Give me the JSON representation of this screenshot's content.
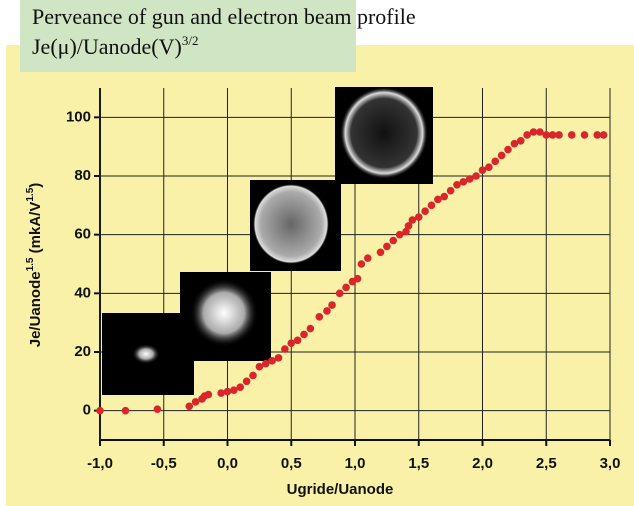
{
  "chart_data": {
    "type": "scatter",
    "title": "Perveance of gun and electron beam profile",
    "subtitle": "Je(μ)/Uanode(V)",
    "subtitle_sup": "3/2",
    "xlabel": "Ugride/Uanode",
    "ylabel_parts": [
      "Je/Uanode",
      "1.5",
      " (mkA/V",
      "1.5",
      ")"
    ],
    "xlim": [
      -1,
      3
    ],
    "ylim": [
      -10,
      110
    ],
    "xticks": [
      {
        "value": -1,
        "label": "-1,0"
      },
      {
        "value": -0.5,
        "label": "-0,5"
      },
      {
        "value": 0,
        "label": "0,0"
      },
      {
        "value": 0.5,
        "label": "0,5"
      },
      {
        "value": 1,
        "label": "1,0"
      },
      {
        "value": 1.5,
        "label": "1,5"
      },
      {
        "value": 2,
        "label": "2,0"
      },
      {
        "value": 2.5,
        "label": "2,5"
      },
      {
        "value": 3,
        "label": "3,0"
      }
    ],
    "yticks": [
      0,
      20,
      40,
      60,
      80,
      100
    ],
    "grid": true,
    "x": [
      -1.0,
      -0.8,
      -0.55,
      -0.3,
      -0.25,
      -0.2,
      -0.18,
      -0.15,
      -0.05,
      0,
      0.05,
      0.1,
      0.15,
      0.2,
      0.25,
      0.3,
      0.35,
      0.4,
      0.45,
      0.5,
      0.55,
      0.6,
      0.65,
      0.72,
      0.78,
      0.82,
      0.88,
      0.93,
      0.98,
      1.02,
      1.05,
      1.1,
      1.2,
      1.25,
      1.3,
      1.35,
      1.4,
      1.42,
      1.45,
      1.5,
      1.55,
      1.6,
      1.65,
      1.7,
      1.75,
      1.8,
      1.85,
      1.9,
      1.95,
      2.0,
      2.05,
      2.1,
      2.15,
      2.2,
      2.25,
      2.3,
      2.35,
      2.4,
      2.45,
      2.5,
      2.55,
      2.6,
      2.7,
      2.8,
      2.9,
      2.95
    ],
    "series": [
      {
        "color": "#d8262a",
        "values": [
          0,
          0,
          0.5,
          1.5,
          3,
          4,
          5,
          5.5,
          6,
          6.5,
          7,
          8,
          10,
          12,
          15,
          16,
          17,
          18,
          21,
          23,
          24,
          26,
          28,
          32,
          34,
          36,
          40,
          42,
          44,
          45,
          50,
          52,
          54,
          56,
          58,
          60,
          61,
          63,
          65,
          66,
          68,
          70,
          72,
          73,
          75,
          77,
          78,
          79,
          80,
          82,
          83,
          85,
          87,
          89,
          91,
          92,
          94,
          95,
          95,
          94,
          94,
          94,
          94,
          94,
          94,
          94
        ]
      }
    ]
  }
}
